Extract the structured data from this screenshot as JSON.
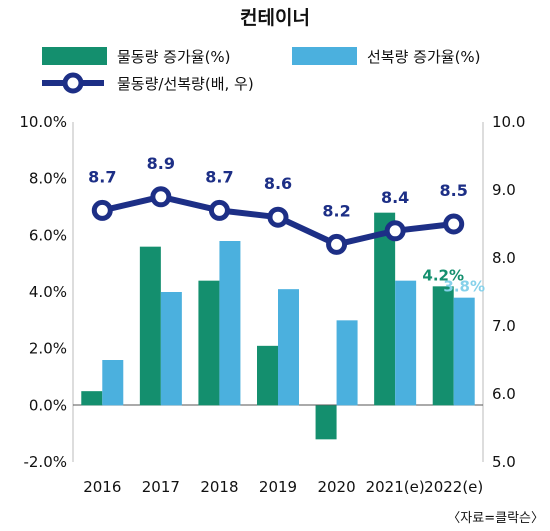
{
  "chart_data": {
    "type": "bar",
    "title": "컨테이너",
    "categories": [
      "2016",
      "2017",
      "2018",
      "2019",
      "2020",
      "2021(e)",
      "2022(e)"
    ],
    "series": [
      {
        "name": "물동량 증가율(%)",
        "kind": "bar",
        "axis": "left",
        "color": "#148f6e",
        "values": [
          0.5,
          5.6,
          4.4,
          2.1,
          -1.2,
          6.8,
          4.2
        ]
      },
      {
        "name": "선복량 증가율(%)",
        "kind": "bar",
        "axis": "left",
        "color": "#4bb0de",
        "values": [
          1.6,
          4.0,
          5.8,
          4.1,
          3.0,
          4.4,
          3.8
        ]
      },
      {
        "name": "물동량/선복량(배, 우)",
        "kind": "line",
        "axis": "right",
        "color": "#1d2f86",
        "values": [
          8.7,
          8.9,
          8.7,
          8.6,
          8.2,
          8.4,
          8.5
        ]
      }
    ],
    "y_left": {
      "min": -2,
      "max": 10,
      "ticks": [
        "10.0%",
        "8.0%",
        "6.0%",
        "4.0%",
        "2.0%",
        "0.0%",
        "-2.0%"
      ]
    },
    "y_right": {
      "min": 5,
      "max": 10,
      "ticks": [
        "10.0",
        "9.0",
        "8.0",
        "7.0",
        "6.0",
        "5.0"
      ]
    },
    "line_labels": [
      "8.7",
      "8.9",
      "8.7",
      "8.6",
      "8.2",
      "8.4",
      "8.5"
    ],
    "bar_labels": [
      {
        "text": "4.2%",
        "color": "#148f6e"
      },
      {
        "text": "3.8%",
        "color": "#86d1ea"
      }
    ],
    "legend_placement": "top",
    "grid": false,
    "source": "〈자료=클락슨〉"
  }
}
